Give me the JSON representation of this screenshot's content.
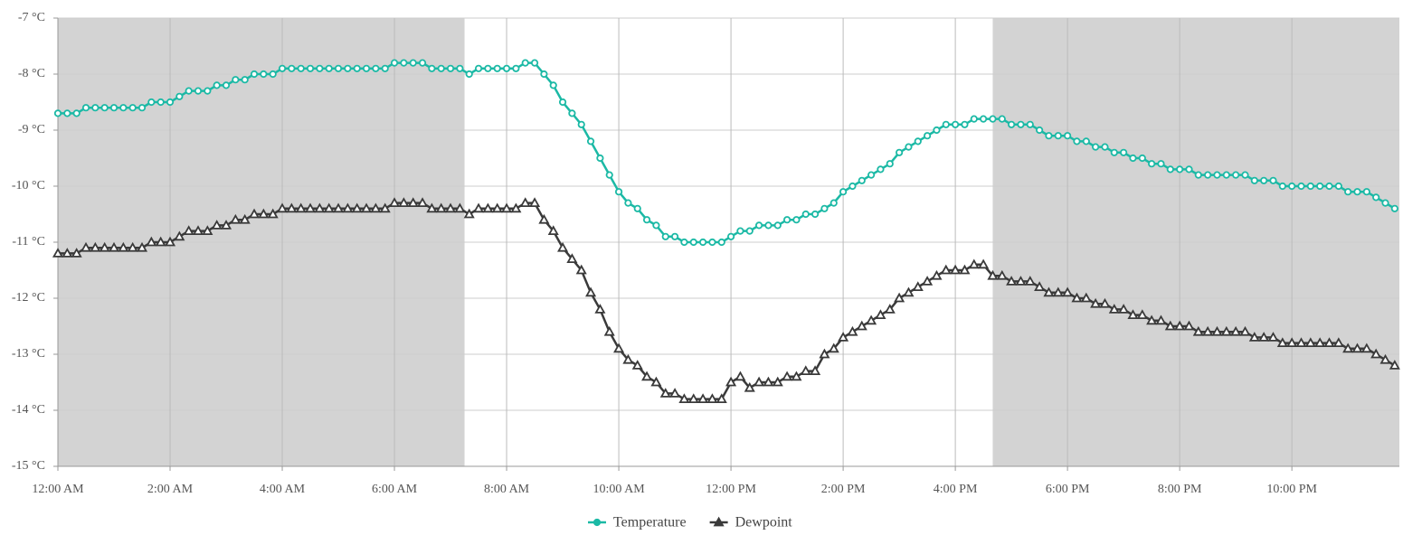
{
  "chart_data": {
    "type": "line",
    "x": [
      0,
      10,
      20,
      30,
      40,
      50,
      60,
      70,
      80,
      90,
      100,
      110,
      120,
      130,
      140,
      150,
      160,
      170,
      180,
      190,
      200,
      210,
      220,
      230,
      240,
      250,
      260,
      270,
      280,
      290,
      300,
      310,
      320,
      330,
      340,
      350,
      360,
      370,
      380,
      390,
      400,
      410,
      420,
      430,
      440,
      450,
      460,
      470,
      480,
      490,
      500,
      510,
      520,
      530,
      540,
      550,
      560,
      570,
      580,
      590,
      600,
      610,
      620,
      630,
      640,
      650,
      660,
      670,
      680,
      690,
      700,
      710,
      720,
      730,
      740,
      750,
      760,
      770,
      780,
      790,
      800,
      810,
      820,
      830,
      840,
      850,
      860,
      870,
      880,
      890,
      900,
      910,
      920,
      930,
      940,
      950,
      960,
      970,
      980,
      990,
      1000,
      1010,
      1020,
      1030,
      1040,
      1050,
      1060,
      1070,
      1080,
      1090,
      1100,
      1110,
      1120,
      1130,
      1140,
      1150,
      1160,
      1170,
      1180,
      1190,
      1200,
      1210,
      1220,
      1230,
      1240,
      1250,
      1260,
      1270,
      1280,
      1290,
      1300,
      1310,
      1320,
      1330,
      1340,
      1350,
      1360,
      1370,
      1380,
      1390,
      1400,
      1410,
      1420,
      1430
    ],
    "series": [
      {
        "name": "Temperature",
        "color": "#1bb9a5",
        "marker": "circle",
        "values": [
          -8.7,
          -8.7,
          -8.7,
          -8.6,
          -8.6,
          -8.6,
          -8.6,
          -8.6,
          -8.6,
          -8.6,
          -8.5,
          -8.5,
          -8.5,
          -8.4,
          -8.3,
          -8.3,
          -8.3,
          -8.2,
          -8.2,
          -8.1,
          -8.1,
          -8.0,
          -8.0,
          -8.0,
          -7.9,
          -7.9,
          -7.9,
          -7.9,
          -7.9,
          -7.9,
          -7.9,
          -7.9,
          -7.9,
          -7.9,
          -7.9,
          -7.9,
          -7.8,
          -7.8,
          -7.8,
          -7.8,
          -7.9,
          -7.9,
          -7.9,
          -7.9,
          -8.0,
          -7.9,
          -7.9,
          -7.9,
          -7.9,
          -7.9,
          -7.8,
          -7.8,
          -8.0,
          -8.2,
          -8.5,
          -8.7,
          -8.9,
          -9.2,
          -9.5,
          -9.8,
          -10.1,
          -10.3,
          -10.4,
          -10.6,
          -10.7,
          -10.9,
          -10.9,
          -11.0,
          -11.0,
          -11.0,
          -11.0,
          -11.0,
          -10.9,
          -10.8,
          -10.8,
          -10.7,
          -10.7,
          -10.7,
          -10.6,
          -10.6,
          -10.5,
          -10.5,
          -10.4,
          -10.3,
          -10.1,
          -10.0,
          -9.9,
          -9.8,
          -9.7,
          -9.6,
          -9.4,
          -9.3,
          -9.2,
          -9.1,
          -9.0,
          -8.9,
          -8.9,
          -8.9,
          -8.8,
          -8.8,
          -8.8,
          -8.8,
          -8.9,
          -8.9,
          -8.9,
          -9.0,
          -9.1,
          -9.1,
          -9.1,
          -9.2,
          -9.2,
          -9.3,
          -9.3,
          -9.4,
          -9.4,
          -9.5,
          -9.5,
          -9.6,
          -9.6,
          -9.7,
          -9.7,
          -9.7,
          -9.8,
          -9.8,
          -9.8,
          -9.8,
          -9.8,
          -9.8,
          -9.9,
          -9.9,
          -9.9,
          -10.0,
          -10.0,
          -10.0,
          -10.0,
          -10.0,
          -10.0,
          -10.0,
          -10.1,
          -10.1,
          -10.1,
          -10.2,
          -10.3,
          -10.4
        ]
      },
      {
        "name": "Dewpoint",
        "color": "#3a3a3a",
        "marker": "triangle",
        "values": [
          -11.2,
          -11.2,
          -11.2,
          -11.1,
          -11.1,
          -11.1,
          -11.1,
          -11.1,
          -11.1,
          -11.1,
          -11.0,
          -11.0,
          -11.0,
          -10.9,
          -10.8,
          -10.8,
          -10.8,
          -10.7,
          -10.7,
          -10.6,
          -10.6,
          -10.5,
          -10.5,
          -10.5,
          -10.4,
          -10.4,
          -10.4,
          -10.4,
          -10.4,
          -10.4,
          -10.4,
          -10.4,
          -10.4,
          -10.4,
          -10.4,
          -10.4,
          -10.3,
          -10.3,
          -10.3,
          -10.3,
          -10.4,
          -10.4,
          -10.4,
          -10.4,
          -10.5,
          -10.4,
          -10.4,
          -10.4,
          -10.4,
          -10.4,
          -10.3,
          -10.3,
          -10.6,
          -10.8,
          -11.1,
          -11.3,
          -11.5,
          -11.9,
          -12.2,
          -12.6,
          -12.9,
          -13.1,
          -13.2,
          -13.4,
          -13.5,
          -13.7,
          -13.7,
          -13.8,
          -13.8,
          -13.8,
          -13.8,
          -13.8,
          -13.5,
          -13.4,
          -13.6,
          -13.5,
          -13.5,
          -13.5,
          -13.4,
          -13.4,
          -13.3,
          -13.3,
          -13.0,
          -12.9,
          -12.7,
          -12.6,
          -12.5,
          -12.4,
          -12.3,
          -12.2,
          -12.0,
          -11.9,
          -11.8,
          -11.7,
          -11.6,
          -11.5,
          -11.5,
          -11.5,
          -11.4,
          -11.4,
          -11.6,
          -11.6,
          -11.7,
          -11.7,
          -11.7,
          -11.8,
          -11.9,
          -11.9,
          -11.9,
          -12.0,
          -12.0,
          -12.1,
          -12.1,
          -12.2,
          -12.2,
          -12.3,
          -12.3,
          -12.4,
          -12.4,
          -12.5,
          -12.5,
          -12.5,
          -12.6,
          -12.6,
          -12.6,
          -12.6,
          -12.6,
          -12.6,
          -12.7,
          -12.7,
          -12.7,
          -12.8,
          -12.8,
          -12.8,
          -12.8,
          -12.8,
          -12.8,
          -12.8,
          -12.9,
          -12.9,
          -12.9,
          -13.0,
          -13.1,
          -13.2
        ]
      }
    ],
    "shaded": [
      [
        0,
        435
      ],
      [
        1000,
        1435
      ]
    ],
    "xlim": [
      0,
      1435
    ],
    "xticks": [
      {
        "value": 0,
        "label": "12:00 AM"
      },
      {
        "value": 120,
        "label": "2:00 AM"
      },
      {
        "value": 240,
        "label": "4:00 AM"
      },
      {
        "value": 360,
        "label": "6:00 AM"
      },
      {
        "value": 480,
        "label": "8:00 AM"
      },
      {
        "value": 600,
        "label": "10:00 AM"
      },
      {
        "value": 720,
        "label": "12:00 PM"
      },
      {
        "value": 840,
        "label": "2:00 PM"
      },
      {
        "value": 960,
        "label": "4:00 PM"
      },
      {
        "value": 1080,
        "label": "6:00 PM"
      },
      {
        "value": 1200,
        "label": "8:00 PM"
      },
      {
        "value": 1320,
        "label": "10:00 PM"
      }
    ],
    "ylim": [
      -15,
      -7
    ],
    "yticks": [
      {
        "value": -15,
        "label": "-15 °C"
      },
      {
        "value": -14,
        "label": "-14 °C"
      },
      {
        "value": -13,
        "label": "-13 °C"
      },
      {
        "value": -12,
        "label": "-12 °C"
      },
      {
        "value": -11,
        "label": "-11 °C"
      },
      {
        "value": -10,
        "label": "-10 °C"
      },
      {
        "value": -9,
        "label": "-9 °C"
      },
      {
        "value": -8,
        "label": "-8 °C"
      },
      {
        "value": -7,
        "label": "-7 °C"
      }
    ],
    "grid": true,
    "legend": "bottom"
  }
}
